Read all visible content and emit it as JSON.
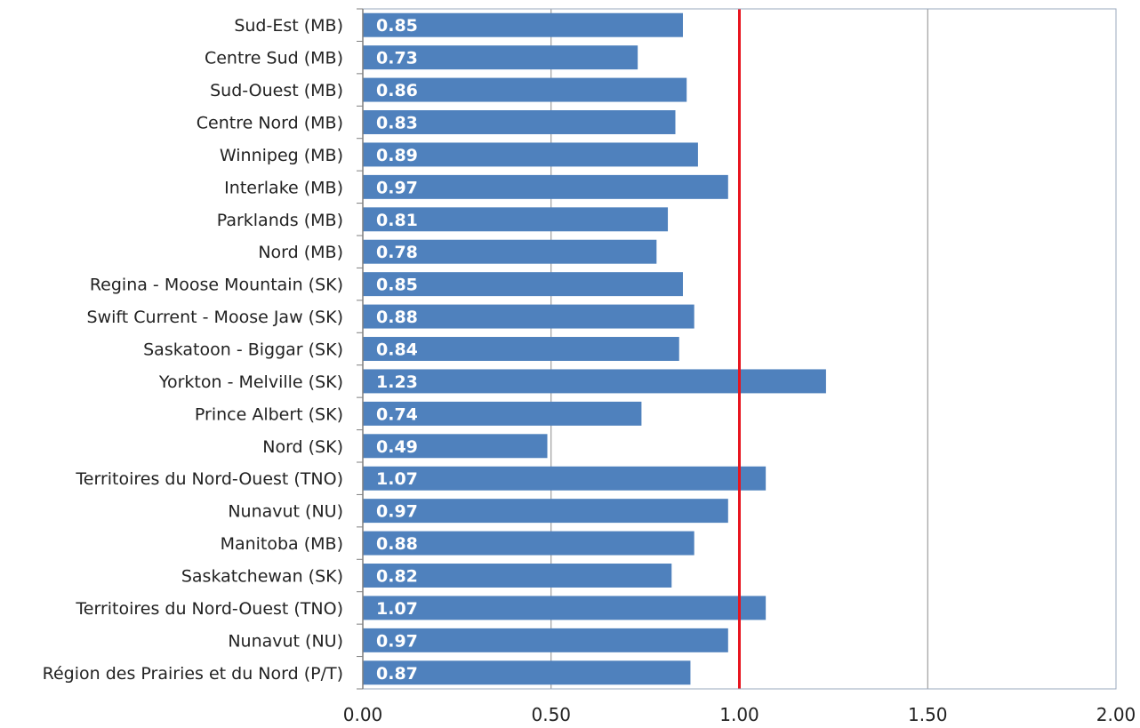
{
  "chart_data": {
    "type": "bar",
    "orientation": "horizontal",
    "title": "",
    "xlabel": "",
    "ylabel": "",
    "categories": [
      "Sud-Est (MB)",
      "Centre Sud (MB)",
      "Sud-Ouest (MB)",
      "Centre Nord (MB)",
      "Winnipeg (MB)",
      "Interlake (MB)",
      "Parklands (MB)",
      "Nord (MB)",
      "Regina - Moose Mountain (SK)",
      "Swift Current - Moose Jaw (SK)",
      "Saskatoon - Biggar (SK)",
      "Yorkton - Melville (SK)",
      "Prince Albert (SK)",
      "Nord (SK)",
      "Territoires du Nord-Ouest (TNO)",
      "Nunavut (NU)",
      "Manitoba (MB)",
      "Saskatchewan (SK)",
      "Territoires du Nord-Ouest (TNO)",
      "Nunavut (NU)",
      "Région des Prairies et du Nord (P/T)"
    ],
    "values": [
      0.85,
      0.73,
      0.86,
      0.83,
      0.89,
      0.97,
      0.81,
      0.78,
      0.85,
      0.88,
      0.84,
      1.23,
      0.74,
      0.49,
      1.07,
      0.97,
      0.88,
      0.82,
      1.07,
      0.97,
      0.87
    ],
    "value_labels": [
      "0.85",
      "0.73",
      "0.86",
      "0.83",
      "0.89",
      "0.97",
      "0.81",
      "0.78",
      "0.85",
      "0.88",
      "0.84",
      "1.23",
      "0.74",
      "0.49",
      "1.07",
      "0.97",
      "0.88",
      "0.82",
      "1.07",
      "0.97",
      "0.87"
    ],
    "xlim": [
      0,
      2
    ],
    "xticks": [
      0,
      0.5,
      1,
      1.5,
      2
    ],
    "xtick_labels": [
      "0.00",
      "0.50",
      "1.00",
      "1.50",
      "2.00"
    ],
    "reference_line": {
      "value": 1.0,
      "color": "#e8141e"
    },
    "grid": "vertical",
    "legend": "none",
    "colors": {
      "bar": "#4f81bd",
      "grid": "#8c8c8c",
      "frame": "#9aa8be",
      "reference": "#e8141e"
    }
  }
}
